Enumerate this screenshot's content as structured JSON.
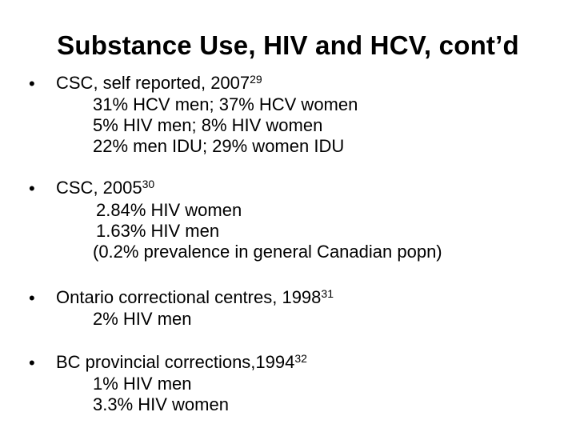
{
  "title": "Substance Use, HIV and HCV, cont’d",
  "bullet_symbol": "•",
  "bullets": [
    {
      "label": "CSC, self reported, 2007",
      "ref": "29",
      "lines": [
        "31% HCV men; 37% HCV women",
        "5% HIV men; 8% HIV women",
        "22% men IDU; 29% women IDU"
      ]
    },
    {
      "label": "CSC, 2005",
      "ref": "30",
      "lines": [
        "2.84%  HIV women",
        "1.63%  HIV men",
        "(0.2% prevalence in general Canadian popn)"
      ]
    },
    {
      "label": "Ontario correctional centres, 1998",
      "ref": "31",
      "lines": [
        "2% HIV men"
      ]
    },
    {
      "label": "BC provincial corrections,1994",
      "ref": "32",
      "lines": [
        "1% HIV men",
        "3.3% HIV women"
      ]
    }
  ]
}
